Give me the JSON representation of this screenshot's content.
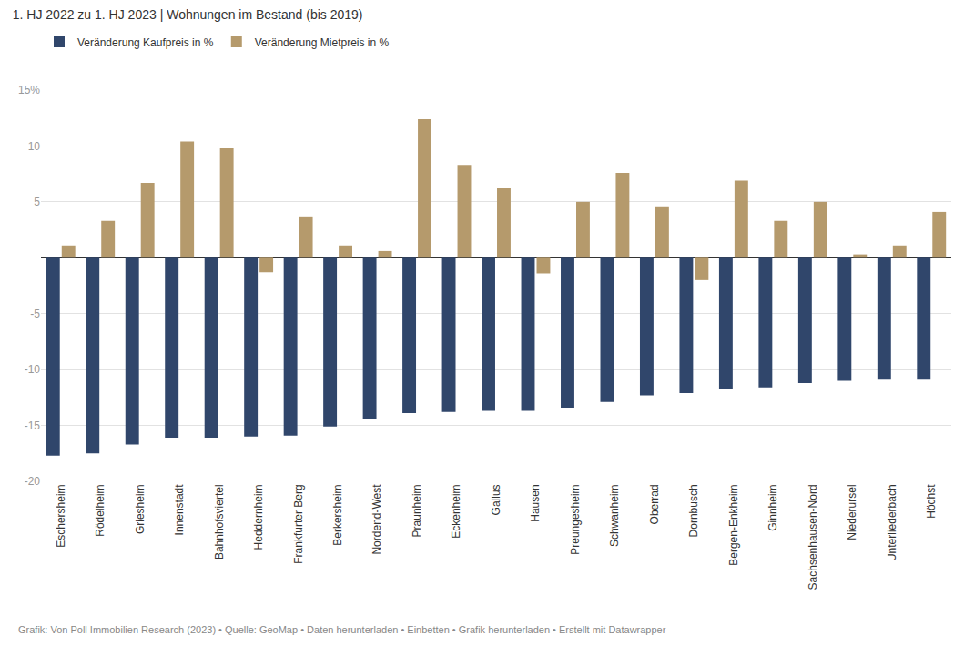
{
  "chart_data": {
    "type": "bar",
    "title": "1. HJ 2022 zu 1. HJ 2023 | Wohnungen im Bestand (bis 2019)",
    "categories": [
      "Eschersheim",
      "Rödelheim",
      "Griesheim",
      "Innenstadt",
      "Bahnhofsviertel",
      "Heddernheim",
      "Frankfurter Berg",
      "Berkersheim",
      "Nordend-West",
      "Praunheim",
      "Eckenheim",
      "Gallus",
      "Hausen",
      "Preungesheim",
      "Schwanheim",
      "Oberrad",
      "Dornbusch",
      "Bergen-Enkheim",
      "Ginnheim",
      "Sachsenhausen-Nord",
      "Niederursel",
      "Unterliederbach",
      "Höchst"
    ],
    "series": [
      {
        "name": "Veränderung Kaufpreis in %",
        "color": "#30466b",
        "values": [
          -17.7,
          -17.5,
          -16.7,
          -16.1,
          -16.1,
          -16.0,
          -15.9,
          -15.1,
          -14.4,
          -13.9,
          -13.8,
          -13.7,
          -13.7,
          -13.4,
          -12.9,
          -12.3,
          -12.1,
          -11.7,
          -11.6,
          -11.2,
          -11.0,
          -10.9,
          -10.9
        ]
      },
      {
        "name": "Veränderung Mietpreis in %",
        "color": "#b59a6c",
        "values": [
          1.1,
          3.3,
          6.7,
          10.4,
          9.8,
          -1.3,
          3.7,
          1.1,
          0.6,
          12.4,
          8.3,
          6.2,
          -1.4,
          5.0,
          7.6,
          4.6,
          -2.0,
          6.9,
          3.3,
          5.0,
          0.3,
          1.1,
          4.1
        ]
      }
    ],
    "ylim": [
      -20,
      15
    ],
    "yticks": [
      {
        "value": 15,
        "label": "15%"
      },
      10,
      5,
      -5,
      -10,
      -15,
      -20
    ],
    "grid": true,
    "legend": "top-left",
    "annotations": [
      "Grafik: Von Poll Immobilien Research (2023) • Quelle: GeoMap • Daten herunterladen • Einbetten • Grafik herunterladen • Erstellt mit Datawrapper"
    ]
  }
}
